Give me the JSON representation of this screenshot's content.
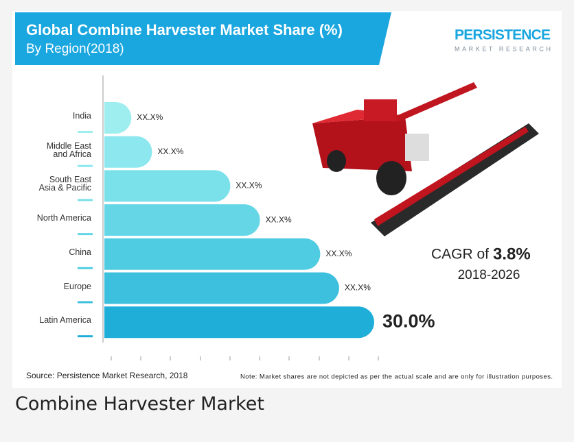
{
  "chart_data": {
    "type": "bar",
    "orientation": "horizontal",
    "title": "Global Combine Harvester Market Share (%)",
    "subtitle": "By Region(2018)",
    "categories": [
      "India",
      "Middle East\nand Africa",
      "South East\nAsia & Pacific",
      "North America",
      "China",
      "Europe",
      "Latin America"
    ],
    "values": [
      3.0,
      5.3,
      14.0,
      17.3,
      24.0,
      26.1,
      30.0
    ],
    "value_labels": [
      "XX.X%",
      "XX.X%",
      "XX.X%",
      "XX.X%",
      "XX.X%",
      "XX.X%",
      "30.0%"
    ],
    "colors": [
      "#9eeef0",
      "#8ce8ee",
      "#7ae0ea",
      "#64d6e6",
      "#50cce2",
      "#3cc0de",
      "#1eaed8"
    ],
    "annotations": {
      "cagr_prefix": "CAGR of",
      "cagr_value": "3.8%",
      "period": "2018-2026"
    },
    "logo": {
      "name": "PERSISTENCE",
      "tagline": "MARKET RESEARCH"
    },
    "source": "Source: Persistence Market Research, 2018",
    "note": "Note: Market shares are not depicted as per the actual scale and are only for illustration purposes."
  },
  "caption": "Combine Harvester Market"
}
